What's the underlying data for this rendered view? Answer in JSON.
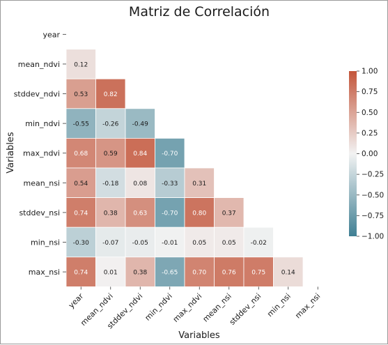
{
  "chart_data": {
    "type": "heatmap",
    "title": "Matriz de Correlación",
    "xlabel": "Variables",
    "ylabel": "Variables",
    "variables": [
      "year",
      "mean_ndvi",
      "stddev_ndvi",
      "min_ndvi",
      "max_ndvi",
      "mean_nsi",
      "stddev_nsi",
      "min_nsi",
      "max_nsi"
    ],
    "mask": "upper-triangle-including-diagonal",
    "cells": [
      {
        "row": "mean_ndvi",
        "col": "year",
        "value": 0.12
      },
      {
        "row": "stddev_ndvi",
        "col": "year",
        "value": 0.53
      },
      {
        "row": "stddev_ndvi",
        "col": "mean_ndvi",
        "value": 0.82
      },
      {
        "row": "min_ndvi",
        "col": "year",
        "value": -0.55
      },
      {
        "row": "min_ndvi",
        "col": "mean_ndvi",
        "value": -0.26
      },
      {
        "row": "min_ndvi",
        "col": "stddev_ndvi",
        "value": -0.49
      },
      {
        "row": "max_ndvi",
        "col": "year",
        "value": 0.68
      },
      {
        "row": "max_ndvi",
        "col": "mean_ndvi",
        "value": 0.59
      },
      {
        "row": "max_ndvi",
        "col": "stddev_ndvi",
        "value": 0.84
      },
      {
        "row": "max_ndvi",
        "col": "min_ndvi",
        "value": -0.7
      },
      {
        "row": "mean_nsi",
        "col": "year",
        "value": 0.54
      },
      {
        "row": "mean_nsi",
        "col": "mean_ndvi",
        "value": -0.18
      },
      {
        "row": "mean_nsi",
        "col": "stddev_ndvi",
        "value": 0.08
      },
      {
        "row": "mean_nsi",
        "col": "min_ndvi",
        "value": -0.33
      },
      {
        "row": "mean_nsi",
        "col": "max_ndvi",
        "value": 0.31
      },
      {
        "row": "stddev_nsi",
        "col": "year",
        "value": 0.74
      },
      {
        "row": "stddev_nsi",
        "col": "mean_ndvi",
        "value": 0.38
      },
      {
        "row": "stddev_nsi",
        "col": "stddev_ndvi",
        "value": 0.63
      },
      {
        "row": "stddev_nsi",
        "col": "min_ndvi",
        "value": -0.7
      },
      {
        "row": "stddev_nsi",
        "col": "max_ndvi",
        "value": 0.8
      },
      {
        "row": "stddev_nsi",
        "col": "mean_nsi",
        "value": 0.37
      },
      {
        "row": "min_nsi",
        "col": "year",
        "value": -0.3
      },
      {
        "row": "min_nsi",
        "col": "mean_ndvi",
        "value": -0.07
      },
      {
        "row": "min_nsi",
        "col": "stddev_ndvi",
        "value": -0.05
      },
      {
        "row": "min_nsi",
        "col": "min_ndvi",
        "value": -0.01
      },
      {
        "row": "min_nsi",
        "col": "max_ndvi",
        "value": 0.05
      },
      {
        "row": "min_nsi",
        "col": "mean_nsi",
        "value": 0.05
      },
      {
        "row": "min_nsi",
        "col": "stddev_nsi",
        "value": -0.02
      },
      {
        "row": "max_nsi",
        "col": "year",
        "value": 0.74
      },
      {
        "row": "max_nsi",
        "col": "mean_ndvi",
        "value": 0.01
      },
      {
        "row": "max_nsi",
        "col": "stddev_ndvi",
        "value": 0.38
      },
      {
        "row": "max_nsi",
        "col": "min_ndvi",
        "value": -0.65
      },
      {
        "row": "max_nsi",
        "col": "max_ndvi",
        "value": 0.7
      },
      {
        "row": "max_nsi",
        "col": "mean_nsi",
        "value": 0.76
      },
      {
        "row": "max_nsi",
        "col": "stddev_nsi",
        "value": 0.75
      },
      {
        "row": "max_nsi",
        "col": "min_nsi",
        "value": 0.14
      }
    ],
    "colorbar": {
      "range": [
        -1.0,
        1.0
      ],
      "ticks": [
        "1.00",
        "0.75",
        "0.50",
        "0.25",
        "0.00",
        "-0.25",
        "-0.50",
        "-0.75",
        "-1.00"
      ],
      "colors": {
        "low": "#3f7f93",
        "mid": "#f2f2f2",
        "high": "#c3553a"
      }
    }
  }
}
